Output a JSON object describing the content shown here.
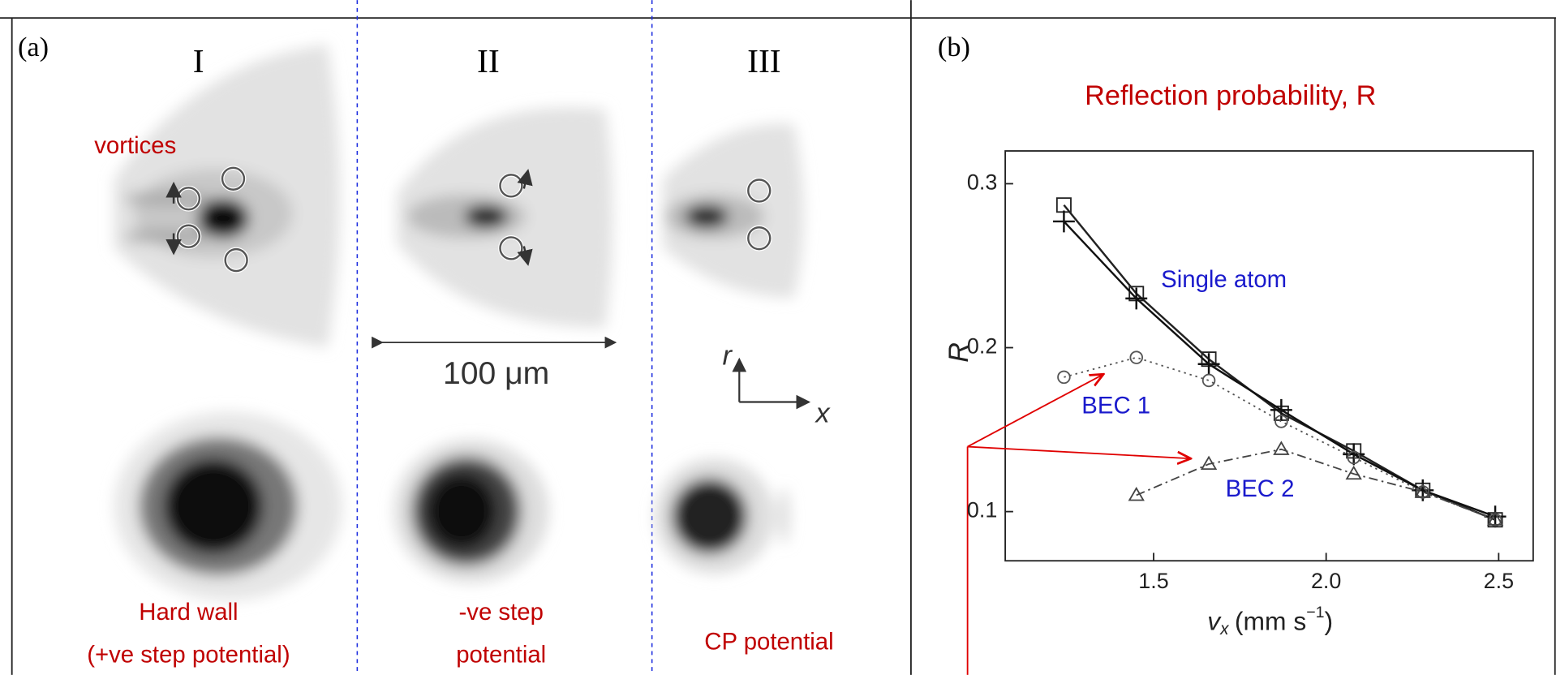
{
  "panel_a": {
    "label": "(a)",
    "columns": [
      "I",
      "II",
      "III"
    ],
    "vortices": "vortices",
    "scale_bar": "100 μm",
    "axis_r": "r",
    "axis_x": "x",
    "captions": [
      [
        "Hard wall",
        "(+ve step potential)"
      ],
      [
        "-ve step",
        "potential"
      ],
      [
        "CP potential"
      ]
    ]
  },
  "chart_data": {
    "type": "line",
    "panel_label": "(b)",
    "title": "Reflection probability, R",
    "ylabel": "R",
    "xlabel": {
      "symbol": "v",
      "subscript": "x",
      "unit": "(mm s",
      "exponent": "−1",
      "close": ")"
    },
    "xlim": [
      1.07,
      2.6
    ],
    "ylim": [
      0.07,
      0.32
    ],
    "xticks": [
      1.5,
      {
        "value": 2,
        "label": "2.0"
      },
      2.5
    ],
    "yticks": [
      0.1,
      0.2,
      0.3
    ],
    "series": [
      {
        "marker": "square",
        "dash": "solid",
        "color": "#222222",
        "x": [
          1.24,
          1.45,
          1.66,
          1.87,
          2.08,
          2.28,
          2.49
        ],
        "values": [
          0.287,
          0.233,
          0.193,
          0.16,
          0.137,
          0.113,
          0.095
        ]
      },
      {
        "name": "Single atom",
        "marker": "plus",
        "dash": "solid",
        "color": "#111111",
        "x": [
          1.24,
          1.45,
          1.66,
          1.87,
          2.08,
          2.28,
          2.49
        ],
        "values": [
          0.277,
          0.23,
          0.19,
          0.162,
          0.135,
          0.113,
          0.097
        ]
      },
      {
        "name": "BEC 1",
        "marker": "circle",
        "dash": "dotted",
        "color": "#555555",
        "x": [
          1.24,
          1.45,
          1.66,
          1.87,
          2.08,
          2.28,
          2.49
        ],
        "values": [
          0.182,
          0.194,
          0.18,
          0.155,
          0.133,
          0.112,
          0.095
        ]
      },
      {
        "name": "BEC 2",
        "marker": "triangle",
        "dash": "dashdot",
        "color": "#444444",
        "x": [
          1.45,
          1.66,
          1.87,
          2.08,
          2.28,
          2.49
        ],
        "values": [
          0.11,
          0.129,
          0.138,
          0.123,
          0.112,
          0.095
        ]
      }
    ]
  }
}
